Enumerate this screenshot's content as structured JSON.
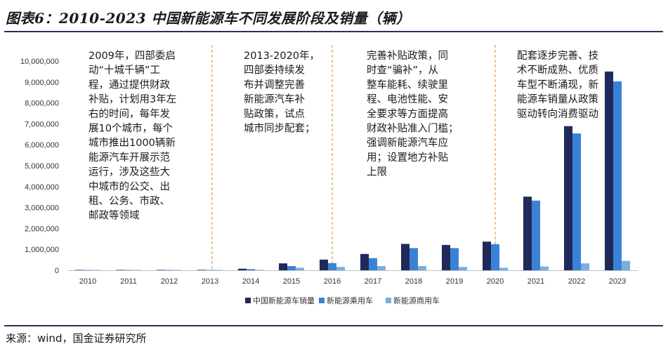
{
  "figure_title": "图表6：2010-2023 中国新能源车不同发展阶段及销量（辆）",
  "source": "来源：wind，国金证券研究所",
  "colors": {
    "series1": "#1f2a5a",
    "series2": "#3a82d6",
    "series3": "#7aaee0",
    "divider": "#d9892f",
    "rule": "#2d2d5c"
  },
  "chart_data": {
    "type": "bar",
    "categories": [
      "2010",
      "2011",
      "2012",
      "2013",
      "2014",
      "2015",
      "2016",
      "2017",
      "2018",
      "2019",
      "2020",
      "2021",
      "2022",
      "2023"
    ],
    "series": [
      {
        "name": "中国新能源车销量",
        "values": [
          10000,
          10000,
          20000,
          20000,
          75000,
          330000,
          510000,
          780000,
          1260000,
          1210000,
          1370000,
          3520000,
          6890000,
          9500000
        ]
      },
      {
        "name": "新能源乘用车",
        "values": [
          5000,
          5000,
          10000,
          10000,
          55000,
          200000,
          340000,
          580000,
          1060000,
          1060000,
          1250000,
          3330000,
          6540000,
          9030000
        ]
      },
      {
        "name": "新能源商用车",
        "values": [
          3000,
          3000,
          5000,
          8000,
          20000,
          120000,
          160000,
          200000,
          200000,
          160000,
          120000,
          180000,
          330000,
          450000
        ]
      }
    ],
    "ylim": [
      0,
      10000000
    ],
    "yticks": [
      "0",
      "1,000,000",
      "2,000,000",
      "3,000,000",
      "4,000,000",
      "5,000,000",
      "6,000,000",
      "7,000,000",
      "8,000,000",
      "9,000,000",
      "10,000,000"
    ],
    "grid": false,
    "legend_position": "bottom",
    "annotations": [
      {
        "lines": [
          "2009年，四部委启",
          "动“十城千辆”工",
          "程，通过提供财政",
          "补贴，计划用3年左",
          "右的时间，每年发",
          "展10个城市，每个",
          "城市推出1000辆新",
          "能源汽车开展示范",
          "运行，涉及这些大",
          "中城市的公交、出",
          "租、公务、市政、",
          "邮政等领域"
        ]
      },
      {
        "lines": [
          "2013-2020年，",
          "四部委持续发",
          "布并调整完善",
          "新能源汽车补",
          "贴政策，试点",
          "城市同步配套；"
        ]
      },
      {
        "lines": [
          "完善补贴政策，同",
          "时查“骗补”，从",
          "整车能耗、续驶里",
          "程、电池性能、安",
          "全要求等方面提高",
          "财政补贴准入门槛；",
          "强调新能源汽车应",
          "用；设置地方补贴",
          "上限"
        ]
      },
      {
        "lines": [
          "配套逐步完善、技",
          "术不断成熟、优质",
          "车型不断涌现，新",
          "能源车销量从政策",
          "驱动转向消费驱动"
        ]
      }
    ]
  }
}
